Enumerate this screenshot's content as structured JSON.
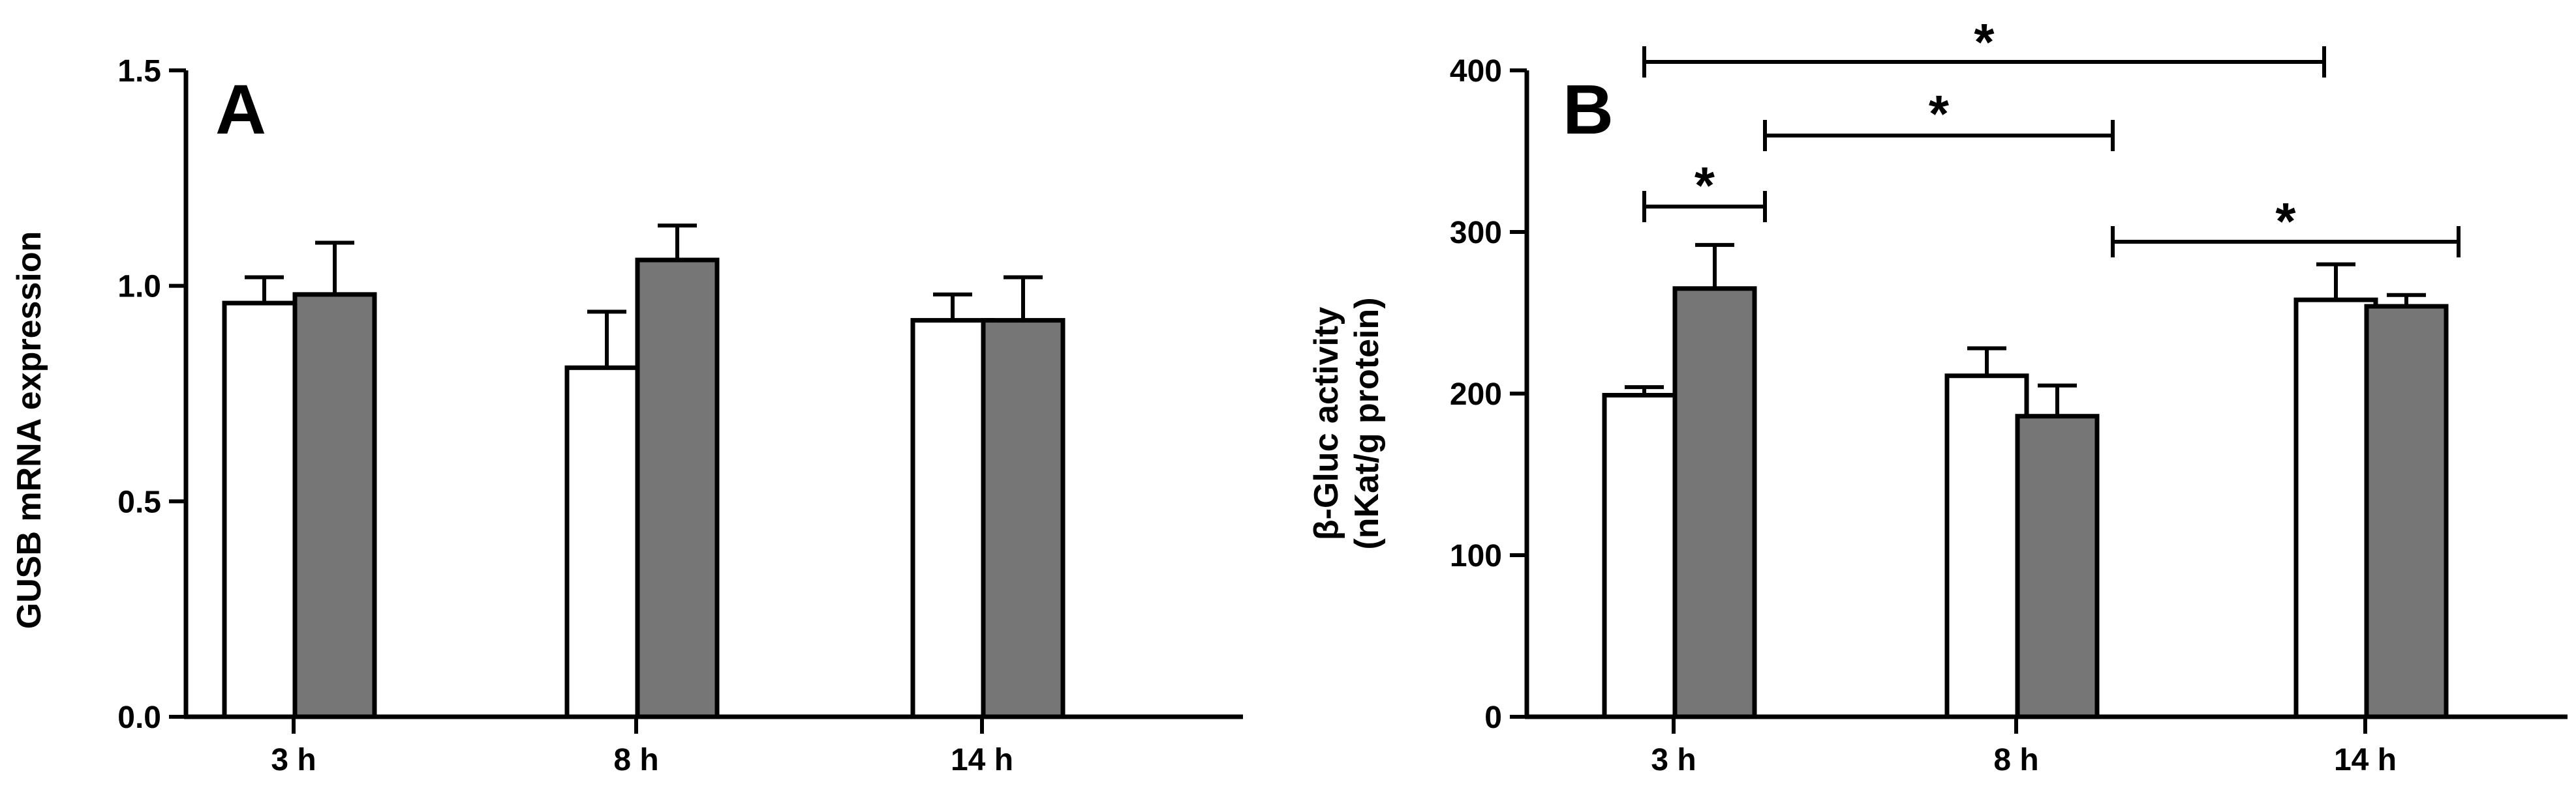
{
  "chart_data": [
    {
      "type": "bar",
      "panel_label": "A",
      "ylabel": "GUSB mRNA expression",
      "ylim": [
        0,
        1.5
      ],
      "yticks": [
        "0.0",
        "0.5",
        "1.0",
        "1.5"
      ],
      "categories": [
        "3 h",
        "8 h",
        "14 h"
      ],
      "series": [
        {
          "values": [
            0.96,
            0.81,
            0.92
          ],
          "errors": [
            0.06,
            0.13,
            0.06
          ],
          "color": "#ffffff"
        },
        {
          "values": [
            0.98,
            1.06,
            0.92
          ],
          "errors": [
            0.12,
            0.08,
            0.1
          ],
          "color": "#767676"
        }
      ],
      "grid": false
    },
    {
      "type": "bar",
      "panel_label": "B",
      "ylabel": [
        "β-Gluc activity",
        "(nKat/g protein)"
      ],
      "ylim": [
        0,
        400
      ],
      "yticks": [
        "0",
        "100",
        "200",
        "300",
        "400"
      ],
      "categories": [
        "3 h",
        "8 h",
        "14 h"
      ],
      "series": [
        {
          "values": [
            199,
            211,
            258
          ],
          "errors": [
            5,
            17,
            22
          ],
          "color": "#ffffff"
        },
        {
          "values": [
            265,
            186,
            254
          ],
          "errors": [
            27,
            19,
            7
          ],
          "color": "#767676"
        }
      ],
      "annotations": [
        {
          "text": "*",
          "from": "3 h, first series",
          "to": "3 h, second series"
        },
        {
          "text": "*",
          "from": "3 h, second series",
          "to": "8 h, second series"
        },
        {
          "text": "*",
          "from": "3 h, first series",
          "to": "14 h, first series"
        },
        {
          "text": "*",
          "from": "8 h, second series",
          "to": "14 h, second series"
        }
      ],
      "grid": false
    }
  ]
}
